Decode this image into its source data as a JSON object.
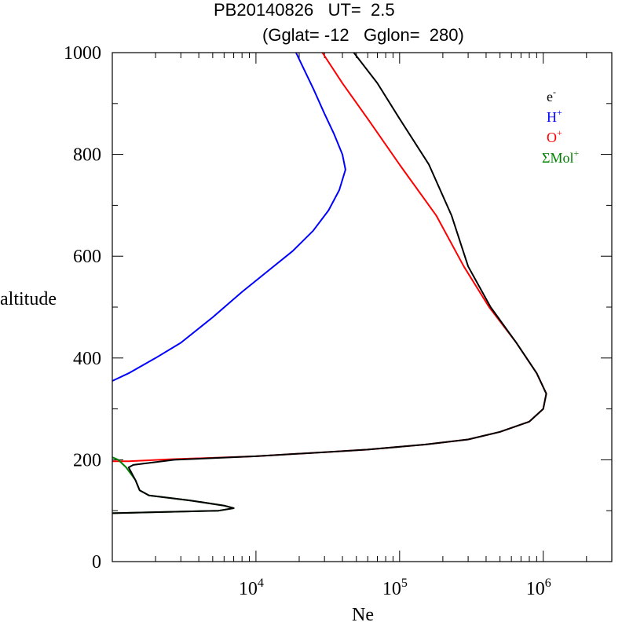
{
  "title": "PB20140826   UT=  2.5",
  "subtitle": "(Gglat= -12   Gglon=  280)",
  "chart_data": {
    "type": "line",
    "xlabel": "Ne",
    "ylabel": "altitude",
    "x_scale": "log",
    "xlim": [
      1000,
      3000000
    ],
    "ylim": [
      0,
      1000
    ],
    "x_ticks": [
      {
        "value": 10000,
        "base": "10",
        "exp": "4"
      },
      {
        "value": 100000,
        "base": "10",
        "exp": "5"
      },
      {
        "value": 1000000,
        "base": "10",
        "exp": "6"
      }
    ],
    "y_ticks": [
      0,
      200,
      400,
      600,
      800,
      1000
    ],
    "legend": {
      "placement": "top-right",
      "items": [
        {
          "label": "e",
          "sup": "-",
          "color": "#000000"
        },
        {
          "label": "H",
          "sup": "+",
          "color": "#0000ff"
        },
        {
          "label": "O",
          "sup": "+",
          "color": "#ff0000"
        },
        {
          "label": "ΣMol",
          "sup": "+",
          "color": "#008000"
        }
      ]
    },
    "series": [
      {
        "name": "H+",
        "color": "#0000ff",
        "points": [
          [
            1000,
            355
          ],
          [
            1300,
            370
          ],
          [
            2000,
            400
          ],
          [
            3000,
            430
          ],
          [
            5000,
            480
          ],
          [
            8000,
            530
          ],
          [
            12000,
            570
          ],
          [
            18000,
            610
          ],
          [
            25000,
            650
          ],
          [
            32000,
            690
          ],
          [
            38000,
            730
          ],
          [
            42000,
            770
          ],
          [
            40000,
            800
          ],
          [
            35000,
            840
          ],
          [
            30000,
            880
          ],
          [
            25000,
            930
          ],
          [
            19000,
            1000
          ]
        ]
      },
      {
        "name": "O+",
        "color": "#ff0000",
        "points": [
          [
            1000,
            197
          ],
          [
            1300,
            197
          ],
          [
            2500,
            201
          ],
          [
            10000,
            207
          ],
          [
            30000,
            215
          ],
          [
            60000,
            220
          ],
          [
            150000,
            230
          ],
          [
            300000,
            240
          ],
          [
            500000,
            255
          ],
          [
            800000,
            275
          ],
          [
            1000000,
            300
          ],
          [
            1050000,
            330
          ],
          [
            900000,
            370
          ],
          [
            650000,
            430
          ],
          [
            420000,
            500
          ],
          [
            280000,
            580
          ],
          [
            180000,
            680
          ],
          [
            100000,
            780
          ],
          [
            60000,
            870
          ],
          [
            40000,
            940
          ],
          [
            29000,
            1000
          ]
        ]
      },
      {
        "name": "ΣMol+",
        "color": "#008000",
        "points": [
          [
            1000,
            205
          ],
          [
            1100,
            200
          ],
          [
            1250,
            185
          ],
          [
            1450,
            160
          ],
          [
            1550,
            140
          ],
          [
            1800,
            130
          ],
          [
            3500,
            120
          ],
          [
            6000,
            110
          ],
          [
            7000,
            105
          ],
          [
            5500,
            100
          ],
          [
            1000,
            95
          ]
        ]
      },
      {
        "name": "e-",
        "color": "#000000",
        "points": [
          [
            1000,
            95
          ],
          [
            5500,
            100
          ],
          [
            7000,
            105
          ],
          [
            6000,
            110
          ],
          [
            3500,
            120
          ],
          [
            1800,
            130
          ],
          [
            1550,
            140
          ],
          [
            1450,
            160
          ],
          [
            1300,
            185
          ],
          [
            1400,
            190
          ],
          [
            2700,
            200
          ],
          [
            10000,
            207
          ],
          [
            30000,
            215
          ],
          [
            60000,
            220
          ],
          [
            150000,
            230
          ],
          [
            300000,
            240
          ],
          [
            500000,
            255
          ],
          [
            800000,
            275
          ],
          [
            1000000,
            300
          ],
          [
            1050000,
            330
          ],
          [
            900000,
            370
          ],
          [
            650000,
            430
          ],
          [
            430000,
            500
          ],
          [
            300000,
            580
          ],
          [
            230000,
            680
          ],
          [
            160000,
            780
          ],
          [
            100000,
            870
          ],
          [
            70000,
            940
          ],
          [
            48000,
            1000
          ]
        ]
      }
    ]
  }
}
